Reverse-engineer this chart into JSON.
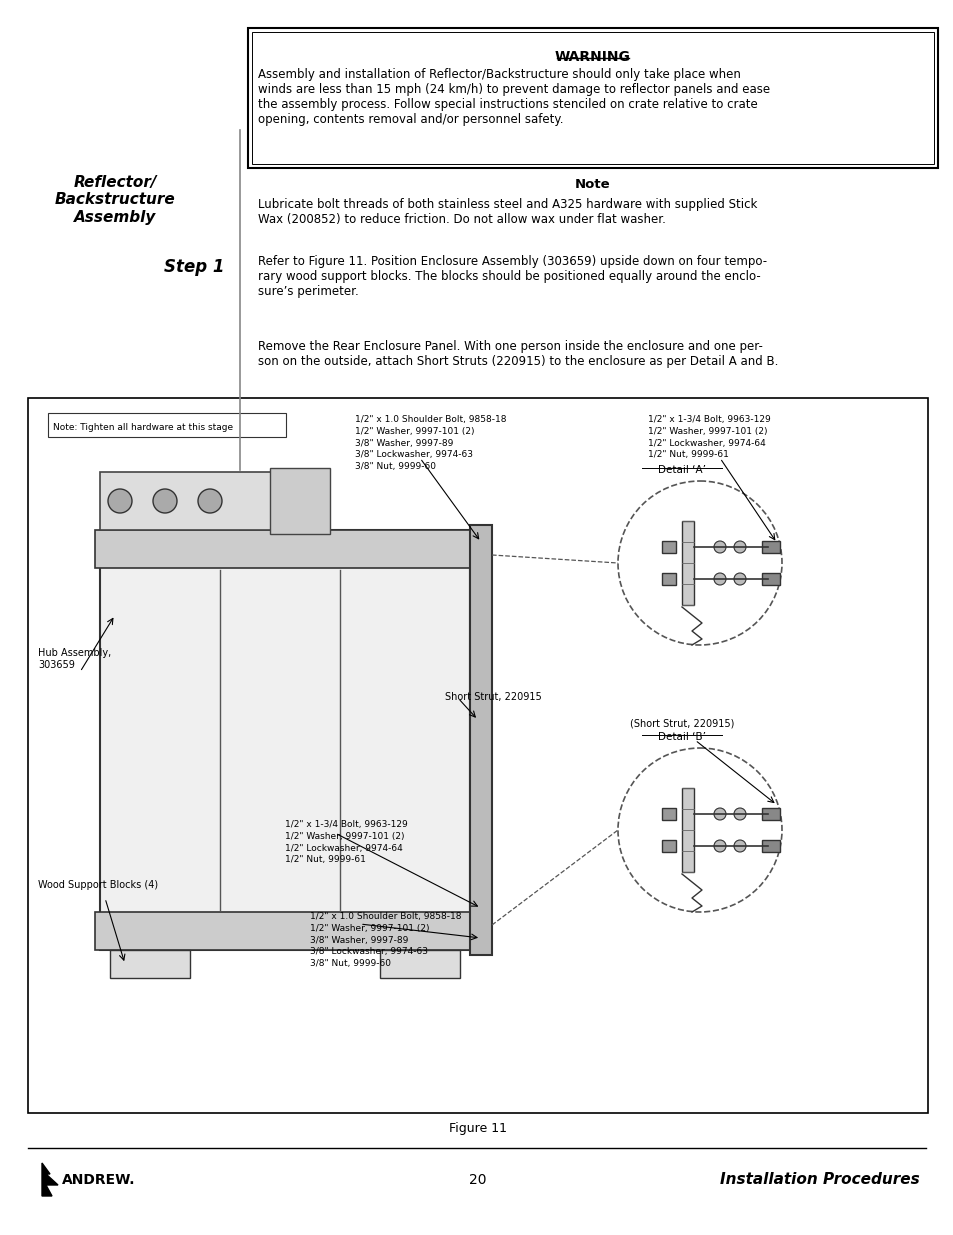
{
  "page_width": 9.54,
  "page_height": 12.35,
  "bg_color": "#ffffff",
  "warning_title": "WARNING",
  "warning_text": "Assembly and installation of Reflector/Backstructure should only take place when\nwinds are less than 15 mph (24 km/h) to prevent damage to reflector panels and ease\nthe assembly process. Follow special instructions stenciled on crate relative to crate\nopening, contents removal and/or personnel safety.",
  "sidebar_title": "Reflector/\nBackstructure\nAssembly",
  "step_label": "Step 1",
  "note_title": "Note",
  "note_text": "Lubricate bolt threads of both stainless steel and A325 hardware with supplied Stick\nWax (200852) to reduce friction. Do not allow wax under flat washer.",
  "step1_text1": "Refer to Figure 11. Position Enclosure Assembly (303659) upside down on four tempo-\nrary wood support blocks. The blocks should be positioned equally around the enclo-\nsure’s perimeter.",
  "step1_text2": "Remove the Rear Enclosure Panel. With one person inside the enclosure and one per-\nson on the outside, attach Short Struts (220915) to the enclosure as per Detail A and B.",
  "figure_caption": "Figure 11",
  "footer_page": "20",
  "footer_right": "Installation Procedures",
  "top_label1_lines": [
    "1/2\" x 1.0 Shoulder Bolt, 9858-18",
    "1/2\" Washer, 9997-101 (2)",
    "3/8\" Washer, 9997-89",
    "3/8\" Lockwasher, 9974-63",
    "3/8\" Nut, 9999-60"
  ],
  "top_label2_lines": [
    "1/2\" x 1-3/4 Bolt, 9963-129",
    "1/2\" Washer, 9997-101 (2)",
    "1/2\" Lockwasher, 9974-64",
    "1/2\" Nut, 9999-61"
  ],
  "detail_a_label": "Detail ‘A’",
  "detail_b_label": "Detail ‘B’",
  "hub_label": "Hub Assembly,\n303659",
  "note_box_label": "Note: Tighten all hardware at this stage",
  "short_strut_label1": "Short Strut, 220915",
  "short_strut_label2": "(Short Strut, 220915)",
  "wood_label": "Wood Support Blocks (4)",
  "bot_label1_lines": [
    "1/2\" x 1-3/4 Bolt, 9963-129",
    "1/2\" Washer, 9997-101 (2)",
    "1/2\" Lockwasher, 9974-64",
    "1/2\" Nut, 9999-61"
  ],
  "bot_label2_lines": [
    "1/2\" x 1.0 Shoulder Bolt, 9858-18",
    "1/2\" Washer, 9997-101 (2)",
    "3/8\" Washer, 9997-89",
    "3/8\" Lockwasher, 9974-63",
    "3/8\" Nut, 9999-60"
  ]
}
